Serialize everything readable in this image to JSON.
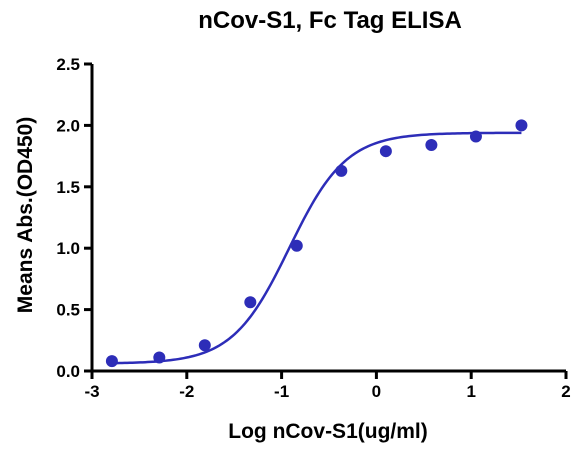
{
  "chart_data": {
    "type": "scatter",
    "title": "nCov-S1, Fc Tag ELISA",
    "xlabel": "Log nCov-S1(ug/ml)",
    "ylabel": "Means Abs.(OD450)",
    "xlim": [
      -3,
      2
    ],
    "ylim": [
      0,
      2.5
    ],
    "x_ticks": [
      -3,
      -2,
      -1,
      0,
      1,
      2
    ],
    "x_tick_labels": [
      "-3",
      "-2",
      "-1",
      "0",
      "1",
      "2"
    ],
    "y_ticks": [
      0,
      0.5,
      1.0,
      1.5,
      2.0,
      2.5
    ],
    "y_tick_labels": [
      "0.0",
      "0.5",
      "1.0",
      "1.5",
      "2.0",
      "2.5"
    ],
    "grid": false,
    "series": [
      {
        "points": [
          {
            "x": -2.79,
            "y": 0.08
          },
          {
            "x": -2.29,
            "y": 0.11
          },
          {
            "x": -1.81,
            "y": 0.21
          },
          {
            "x": -1.33,
            "y": 0.56
          },
          {
            "x": -0.84,
            "y": 1.02
          },
          {
            "x": -0.37,
            "y": 1.63
          },
          {
            "x": 0.1,
            "y": 1.79
          },
          {
            "x": 0.58,
            "y": 1.84
          },
          {
            "x": 1.05,
            "y": 1.91
          },
          {
            "x": 1.53,
            "y": 2.0
          }
        ],
        "fit_curve": {
          "model": "4PL",
          "bottom": 0.06,
          "top": 1.94,
          "log_ec50": -0.92,
          "hill_slope": 1.45
        }
      }
    ],
    "colors": {
      "series": "#2d2db8",
      "axis": "#000000"
    }
  }
}
